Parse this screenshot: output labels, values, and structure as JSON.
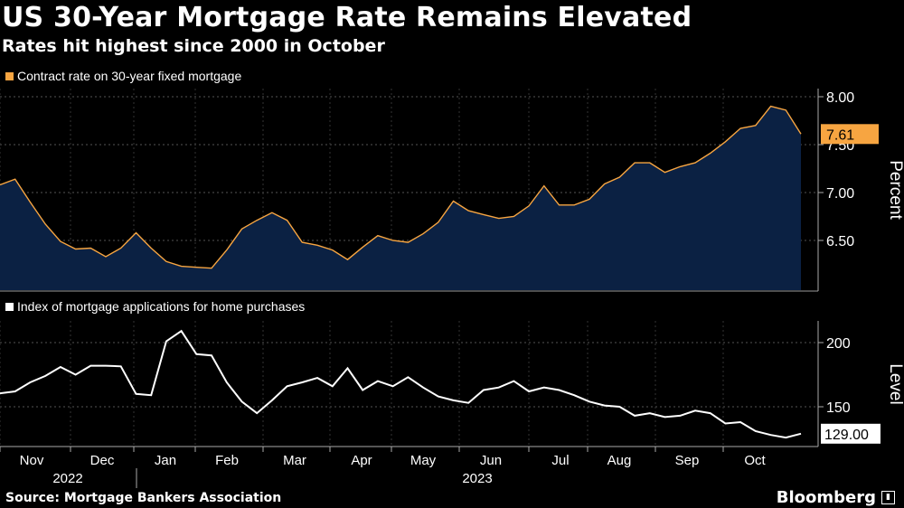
{
  "title": "US 30-Year Mortgage Rate Remains Elevated",
  "subtitle": "Rates hit highest since 2000 in October",
  "source": "Source: Mortgage Bankers Association",
  "brand": "Bloomberg",
  "colors": {
    "rate_line": "#f7a541",
    "rate_fill": "#0b2143",
    "index_line": "#ffffff",
    "badge_rate": "#f7a541"
  },
  "chart_data": [
    {
      "type": "area",
      "legend": "Contract rate on 30-year fixed mortgage",
      "ylabel": "Percent",
      "ylim": [
        6.0,
        8.0
      ],
      "yticks": [
        "8.00",
        "7.50",
        "7.00",
        "6.50"
      ],
      "last_value_label": "7.61",
      "values": [
        7.08,
        7.14,
        6.9,
        6.67,
        6.49,
        6.41,
        6.42,
        6.33,
        6.42,
        6.58,
        6.42,
        6.28,
        6.23,
        6.22,
        6.21,
        6.4,
        6.62,
        6.71,
        6.79,
        6.71,
        6.48,
        6.45,
        6.4,
        6.3,
        6.43,
        6.55,
        6.5,
        6.48,
        6.57,
        6.69,
        6.91,
        6.81,
        6.77,
        6.73,
        6.75,
        6.86,
        7.07,
        6.87,
        6.87,
        6.93,
        7.09,
        7.16,
        7.31,
        7.31,
        7.21,
        7.27,
        7.31,
        7.41,
        7.53,
        7.67,
        7.7,
        7.9,
        7.86,
        7.61
      ]
    },
    {
      "type": "line",
      "legend": "Index of mortgage applications for home purchases",
      "ylabel": "Level",
      "ylim": [
        122,
        218
      ],
      "yticks": [
        "200",
        "150"
      ],
      "last_value_label": "129.00",
      "values": [
        160.5,
        162.0,
        169.0,
        174.0,
        181.0,
        175.0,
        182.0,
        182.0,
        181.5,
        160.0,
        159.0,
        201.0,
        209.0,
        191.0,
        190.0,
        169.0,
        154.0,
        145.0,
        155.0,
        166.0,
        169.0,
        172.5,
        166.0,
        180.0,
        163.0,
        170.0,
        166.0,
        173.0,
        165.0,
        158.0,
        155.0,
        153.0,
        163.0,
        165.0,
        170.0,
        162.0,
        165.0,
        163.0,
        159.0,
        154.0,
        151.0,
        150.0,
        143.0,
        145.0,
        142.0,
        143.0,
        147.0,
        145.0,
        137.0,
        138.0,
        131.0,
        128.0,
        126.0,
        129.0
      ]
    }
  ],
  "x_axis": {
    "months": [
      "Nov",
      "Dec",
      "Jan",
      "Feb",
      "Mar",
      "Apr",
      "May",
      "Jun",
      "Jul",
      "Aug",
      "Sep",
      "Oct"
    ],
    "years": [
      "2022",
      "2023"
    ]
  }
}
